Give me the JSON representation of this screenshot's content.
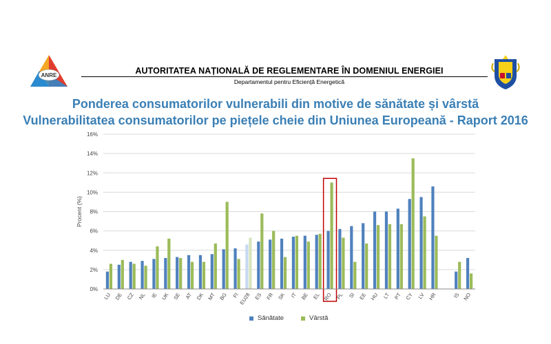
{
  "header": {
    "logo_text": "ANRE",
    "org_title": "AUTORITATEA NAȚIONALĂ DE REGLEMENTARE ÎN DOMENIUL ENERGIEI",
    "org_subtitle": "Departamentul pentru Eficiență Energetică"
  },
  "titles": {
    "line1": "Ponderea consumatorilor vulnerabili din motive de sănătate și vârstă",
    "line2": "Vulnerabilitatea consumatorilor pe piețele cheie din Uniunea Europeană - Raport 2016"
  },
  "colors": {
    "title": "#3a7fb5",
    "sanatate": "#4f81bd",
    "varsta": "#9bbb59",
    "eu28_sanatate": "#c6d9f1",
    "eu28_varsta": "#d7e4bd",
    "highlight": "#c00000"
  },
  "chart_data": {
    "type": "bar",
    "title": "",
    "xlabel": "",
    "ylabel": "Procent (%)",
    "ylim": [
      0,
      16
    ],
    "yticks": [
      "0%",
      "2%",
      "4%",
      "6%",
      "8%",
      "10%",
      "12%",
      "14%",
      "16%"
    ],
    "grid": true,
    "legend_position": "bottom",
    "categories": [
      "LU",
      "DE",
      "CZ",
      "NL",
      "IE",
      "UK",
      "SE",
      "AT",
      "DK",
      "MT",
      "BG",
      "FI",
      "EU28",
      "ES",
      "FR",
      "SK",
      "IT",
      "BE",
      "EL",
      "RO",
      "PL",
      "SI",
      "EE",
      "HU",
      "LT",
      "PT",
      "CY",
      "LV",
      "HR",
      "IS",
      "NO"
    ],
    "series": [
      {
        "name": "Sănătate",
        "values": [
          1.8,
          2.5,
          2.8,
          2.9,
          3.1,
          3.2,
          3.3,
          3.5,
          3.5,
          3.6,
          4.1,
          4.2,
          4.6,
          4.9,
          5.1,
          5.2,
          5.4,
          5.5,
          5.6,
          6.0,
          6.2,
          6.5,
          6.8,
          8.0,
          8.0,
          8.3,
          9.3,
          9.5,
          10.6,
          1.8,
          3.2
        ]
      },
      {
        "name": "Vârstă",
        "values": [
          2.6,
          3.0,
          2.6,
          2.4,
          4.4,
          5.2,
          3.2,
          2.8,
          2.8,
          4.7,
          9.0,
          3.1,
          5.3,
          7.8,
          6.0,
          3.3,
          5.5,
          4.9,
          5.7,
          11.0,
          5.3,
          2.8,
          4.7,
          6.6,
          6.7,
          6.7,
          13.5,
          7.5,
          5.5,
          2.8,
          1.6
        ]
      }
    ],
    "highlighted_category": "RO",
    "gap_before": "IS"
  }
}
